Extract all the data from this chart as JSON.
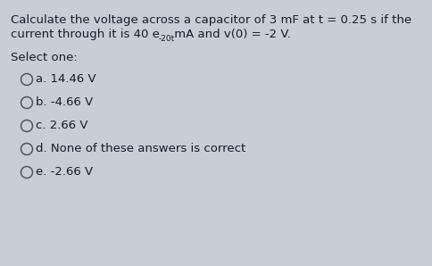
{
  "background_color": "#c8cdd6",
  "text_color": "#1a1a2e",
  "circle_color": "#555555",
  "line1": "Calculate the voltage across a capacitor of 3 mF at t = 0.25 s if the",
  "line2_pre": "current through it is 40 e",
  "line2_sup": "-20t",
  "line2_post": " mA and v(0) = -2 V.",
  "select_label": "Select one:",
  "options": [
    "a. 14.46 V",
    "b. -4.66 V",
    "c. 2.66 V",
    "d. None of these answers is correct",
    "e. -2.66 V"
  ],
  "font_size_question": 9.5,
  "font_size_sup": 6.5,
  "font_size_select": 9.5,
  "font_size_options": 9.5,
  "fig_width": 4.84,
  "fig_height": 2.98,
  "dpi": 100
}
